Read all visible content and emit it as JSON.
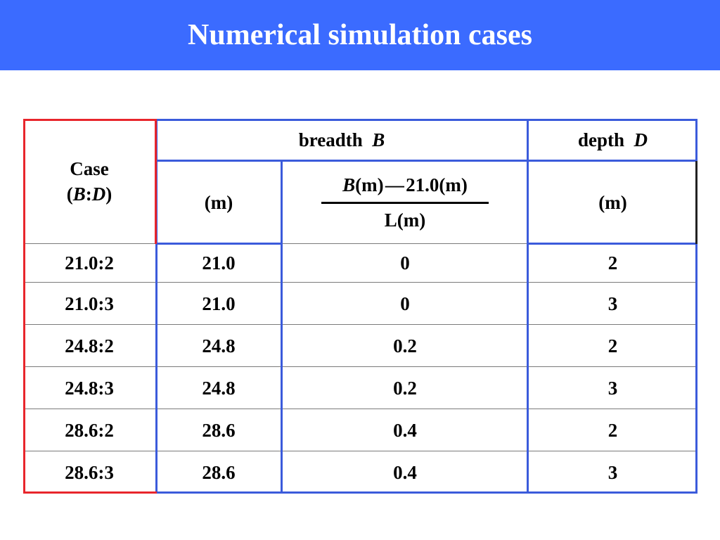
{
  "title": "Numerical simulation cases",
  "header": {
    "case_label": "Case",
    "case_ratio_open": "(",
    "case_ratio_b": "B",
    "case_ratio_sep": ":",
    "case_ratio_d": "D",
    "case_ratio_close": ")",
    "breadth_label": "breadth",
    "breadth_var": "B",
    "depth_label": "depth",
    "depth_var": "D",
    "unit_breadth": "(m)",
    "frac_num_var": "B",
    "frac_num_rest": "(m) — 21.0(m)",
    "frac_den": "L(m)",
    "unit_depth": "(m)"
  },
  "rows": [
    {
      "case": "21.0:2",
      "breadth": "21.0",
      "ratio": "0",
      "depth": "2"
    },
    {
      "case": "21.0:3",
      "breadth": "21.0",
      "ratio": "0",
      "depth": "3"
    },
    {
      "case": "24.8:2",
      "breadth": "24.8",
      "ratio": "0.2",
      "depth": "2"
    },
    {
      "case": "24.8:3",
      "breadth": "24.8",
      "ratio": "0.2",
      "depth": "3"
    },
    {
      "case": "28.6:2",
      "breadth": "28.6",
      "ratio": "0.4",
      "depth": "2"
    },
    {
      "case": "28.6:3",
      "breadth": "28.6",
      "ratio": "0.4",
      "depth": "3"
    }
  ],
  "colors": {
    "title_bar": "#3b6bff",
    "blue_border": "#3b5bdb",
    "red_border": "#e8262c"
  }
}
